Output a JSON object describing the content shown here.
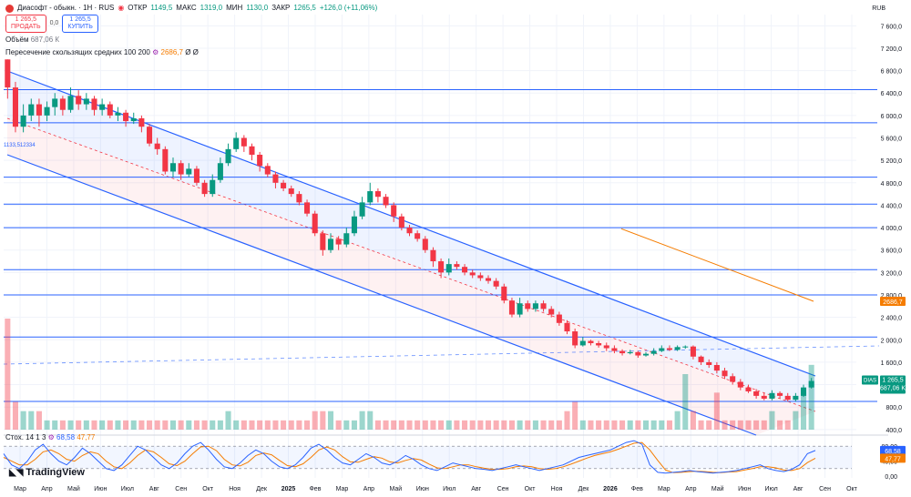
{
  "header": {
    "symbol_title": "Диасофт - обыкн. · 1Н · RUS",
    "open_label": "ОТКР",
    "open_value": "1149,5",
    "high_label": "МАКС",
    "high_value": "1319,0",
    "low_label": "МИН",
    "low_value": "1130,0",
    "close_label": "ЗАКР",
    "close_value": "1265,5",
    "change": "+126,0 (+11,06%)"
  },
  "trade": {
    "sell_price": "1 265,5",
    "sell_label": "ПРОДАТЬ",
    "spread": "0,0",
    "buy_price": "1 265,5",
    "buy_label": "КУПИТЬ"
  },
  "volume_legend": {
    "label": "Объём",
    "value": "687,06 К"
  },
  "ma_legend": {
    "label": "Пересечение скользящих средних 100 200",
    "value": "2686,7",
    "extra1": "Ø",
    "extra2": "Ø"
  },
  "stoch_legend": {
    "label": "Стох. 14 1 3",
    "k": "68,58",
    "d": "47,77"
  },
  "currency": "RUB",
  "brand": "TradingView",
  "colors": {
    "up": "#089981",
    "down": "#f23645",
    "channel": "#2962ff",
    "level": "#2962ff",
    "ma": "#f57c00"
  },
  "chart_data": {
    "type": "candlestick",
    "y_axis_ticks": [
      "7 600,0",
      "7 200,0",
      "6 800,0",
      "6 400,0",
      "6 000,0",
      "5 600,0",
      "5 200,0",
      "4 800,0",
      "4 400,0",
      "4 000,0",
      "3 600,0",
      "3 200,0",
      "2 800,0",
      "2 400,0",
      "2 000,0",
      "1 600,0",
      "1 200,0",
      "800,0",
      "400,0"
    ],
    "ylim": [
      300,
      7800
    ],
    "stoch_ticks": [
      "80,00",
      "40,00",
      "0,00"
    ],
    "x_axis_ticks": [
      "Мар",
      "Апр",
      "Май",
      "Июн",
      "Июл",
      "Авг",
      "Сен",
      "Окт",
      "Ноя",
      "Дек",
      "2025",
      "Фев",
      "Мар",
      "Апр",
      "Май",
      "Июн",
      "Июл",
      "Авг",
      "Сен",
      "Окт",
      "Ноя",
      "Дек",
      "2026",
      "Фев",
      "Мар",
      "Апр",
      "Май",
      "Июн",
      "Июл",
      "Авг",
      "Сен",
      "Окт"
    ],
    "horizontal_levels": [
      6460,
      5870,
      4900,
      4420,
      4000,
      3250,
      2800,
      2050,
      900
    ],
    "left_label": "1133,512334",
    "price_tags": [
      {
        "label": "DIAS",
        "value": "1 265,5",
        "sub": "687,06 K",
        "price": 1265.5,
        "color": "#089981"
      },
      {
        "label": "",
        "value": "2686,7",
        "sub": "",
        "price": 2686.7,
        "color": "#f57c00"
      }
    ],
    "stoch_tags": [
      {
        "value": "68,58",
        "level": 68.58,
        "color": "#2962ff"
      },
      {
        "value": "47,77",
        "level": 47.77,
        "color": "#f57c00"
      }
    ],
    "candles": [
      [
        7000,
        6500,
        7000,
        6300
      ],
      [
        6500,
        5800,
        6600,
        5700
      ],
      [
        5800,
        6000,
        6200,
        5700
      ],
      [
        6000,
        6200,
        6300,
        5900
      ],
      [
        6200,
        6000,
        6300,
        5800
      ],
      [
        6000,
        6150,
        6250,
        5900
      ],
      [
        6150,
        6300,
        6400,
        6000
      ],
      [
        6300,
        6100,
        6350,
        6000
      ],
      [
        6100,
        6350,
        6500,
        6050
      ],
      [
        6350,
        6200,
        6450,
        6100
      ],
      [
        6200,
        6300,
        6400,
        6100
      ],
      [
        6300,
        6100,
        6350,
        6000
      ],
      [
        6100,
        6200,
        6300,
        6000
      ],
      [
        6200,
        6000,
        6250,
        5950
      ],
      [
        6000,
        6050,
        6150,
        5900
      ],
      [
        6050,
        5900,
        6100,
        5800
      ],
      [
        5900,
        5950,
        6050,
        5850
      ],
      [
        5950,
        5800,
        6000,
        5700
      ],
      [
        5800,
        5500,
        5850,
        5450
      ],
      [
        5500,
        5400,
        5600,
        5300
      ],
      [
        5400,
        5000,
        5450,
        4950
      ],
      [
        5000,
        5150,
        5250,
        4900
      ],
      [
        5150,
        4950,
        5200,
        4850
      ],
      [
        4950,
        5050,
        5150,
        4900
      ],
      [
        5050,
        4800,
        5100,
        4750
      ],
      [
        4800,
        4600,
        4850,
        4550
      ],
      [
        4600,
        4850,
        4950,
        4550
      ],
      [
        4850,
        5150,
        5250,
        4800
      ],
      [
        5150,
        5400,
        5500,
        5100
      ],
      [
        5400,
        5600,
        5700,
        5350
      ],
      [
        5600,
        5450,
        5650,
        5350
      ],
      [
        5450,
        5300,
        5500,
        5200
      ],
      [
        5300,
        5100,
        5350,
        5000
      ],
      [
        5100,
        4950,
        5150,
        4900
      ],
      [
        4950,
        4800,
        5000,
        4700
      ],
      [
        4800,
        4700,
        4850,
        4650
      ],
      [
        4700,
        4600,
        4750,
        4550
      ],
      [
        4600,
        4450,
        4650,
        4400
      ],
      [
        4450,
        4250,
        4500,
        4200
      ],
      [
        4250,
        3900,
        4300,
        3850
      ],
      [
        3900,
        3600,
        3950,
        3500
      ],
      [
        3600,
        3800,
        3900,
        3550
      ],
      [
        3800,
        3700,
        3850,
        3600
      ],
      [
        3700,
        3900,
        4000,
        3650
      ],
      [
        3900,
        4200,
        4300,
        3850
      ],
      [
        4200,
        4450,
        4550,
        4150
      ],
      [
        4450,
        4650,
        4800,
        4400
      ],
      [
        4650,
        4550,
        4700,
        4450
      ],
      [
        4550,
        4400,
        4600,
        4350
      ],
      [
        4400,
        4200,
        4450,
        4100
      ],
      [
        4200,
        4000,
        4250,
        3950
      ],
      [
        4000,
        3900,
        4050,
        3850
      ],
      [
        3900,
        3800,
        3950,
        3750
      ],
      [
        3800,
        3600,
        3850,
        3550
      ],
      [
        3600,
        3400,
        3650,
        3300
      ],
      [
        3400,
        3200,
        3450,
        3100
      ],
      [
        3200,
        3350,
        3450,
        3150
      ],
      [
        3350,
        3300,
        3400,
        3250
      ],
      [
        3300,
        3200,
        3350,
        3150
      ],
      [
        3200,
        3150,
        3250,
        3100
      ],
      [
        3150,
        3100,
        3200,
        3050
      ],
      [
        3100,
        3050,
        3150,
        3000
      ],
      [
        3050,
        2950,
        3100,
        2900
      ],
      [
        2950,
        2700,
        3000,
        2650
      ],
      [
        2700,
        2450,
        2750,
        2400
      ],
      [
        2450,
        2650,
        2750,
        2400
      ],
      [
        2650,
        2550,
        2700,
        2500
      ],
      [
        2550,
        2650,
        2700,
        2500
      ],
      [
        2650,
        2550,
        2700,
        2500
      ],
      [
        2550,
        2450,
        2600,
        2400
      ],
      [
        2450,
        2300,
        2500,
        2250
      ],
      [
        2300,
        2150,
        2350,
        2100
      ],
      [
        2150,
        1900,
        2200,
        1850
      ],
      [
        1900,
        1980,
        2050,
        1880
      ],
      [
        1980,
        1940,
        2000,
        1900
      ],
      [
        1940,
        1900,
        1980,
        1860
      ],
      [
        1900,
        1850,
        1950,
        1800
      ],
      [
        1850,
        1800,
        1900,
        1760
      ],
      [
        1800,
        1760,
        1830,
        1720
      ],
      [
        1760,
        1780,
        1820,
        1740
      ],
      [
        1780,
        1720,
        1800,
        1680
      ],
      [
        1720,
        1750,
        1780,
        1700
      ],
      [
        1750,
        1800,
        1850,
        1720
      ],
      [
        1800,
        1850,
        1900,
        1780
      ],
      [
        1850,
        1820,
        1900,
        1800
      ],
      [
        1820,
        1870,
        1900,
        1800
      ],
      [
        1870,
        1880,
        1900,
        1840
      ],
      [
        1880,
        1700,
        1900,
        1650
      ],
      [
        1700,
        1600,
        1720,
        1550
      ],
      [
        1600,
        1550,
        1650,
        1500
      ],
      [
        1550,
        1450,
        1600,
        1400
      ],
      [
        1450,
        1350,
        1500,
        1300
      ],
      [
        1350,
        1250,
        1400,
        1200
      ],
      [
        1250,
        1150,
        1300,
        1100
      ],
      [
        1150,
        1080,
        1200,
        1050
      ],
      [
        1080,
        1000,
        1120,
        950
      ],
      [
        1000,
        950,
        1050,
        920
      ],
      [
        950,
        1050,
        1100,
        920
      ],
      [
        1050,
        1000,
        1080,
        950
      ],
      [
        1000,
        930,
        1050,
        900
      ],
      [
        930,
        1000,
        1050,
        900
      ],
      [
        1000,
        1150,
        1200,
        980
      ],
      [
        1149.5,
        1265.5,
        1319,
        1130
      ]
    ],
    "volume": [
      12,
      3,
      2,
      2,
      2,
      1,
      1,
      1,
      1,
      1,
      1,
      1,
      1,
      1,
      1,
      1,
      1,
      1,
      1,
      1,
      1,
      1,
      1,
      1,
      1,
      1,
      1,
      1,
      2,
      1,
      1,
      1,
      1,
      1,
      1,
      1,
      1,
      1,
      1,
      2,
      2,
      2,
      1,
      1,
      1,
      2,
      2,
      1,
      1,
      1,
      1,
      1,
      1,
      1,
      1,
      1,
      1,
      1,
      1,
      1,
      1,
      1,
      1,
      1,
      1,
      1,
      1,
      1,
      1,
      1,
      1,
      2,
      3,
      1,
      1,
      1,
      1,
      1,
      1,
      1,
      1,
      1,
      1,
      1,
      1,
      2,
      6,
      2,
      1,
      1,
      4,
      1,
      1,
      1,
      1,
      1,
      1,
      2,
      1,
      1,
      2,
      4,
      7
    ],
    "stoch_k": [
      60,
      30,
      20,
      40,
      70,
      85,
      60,
      40,
      30,
      50,
      75,
      60,
      40,
      20,
      15,
      30,
      55,
      80,
      70,
      50,
      30,
      20,
      35,
      60,
      80,
      90,
      70,
      45,
      25,
      20,
      35,
      55,
      70,
      60,
      40,
      25,
      20,
      30,
      50,
      75,
      85,
      70,
      50,
      35,
      30,
      45,
      60,
      50,
      35,
      30,
      40,
      55,
      45,
      30,
      20,
      15,
      25,
      35,
      30,
      25,
      20,
      18,
      15,
      20,
      25,
      30,
      25,
      20,
      15,
      20,
      25,
      30,
      40,
      50,
      55,
      60,
      65,
      70,
      80,
      90,
      95,
      85,
      30,
      10,
      8,
      10,
      12,
      15,
      12,
      10,
      8,
      10,
      12,
      15,
      20,
      25,
      30,
      20,
      15,
      12,
      18,
      30,
      60,
      68.58
    ],
    "stoch_d": [
      50,
      40,
      30,
      30,
      45,
      65,
      70,
      60,
      45,
      40,
      55,
      65,
      60,
      40,
      25,
      20,
      35,
      55,
      70,
      65,
      50,
      33,
      28,
      40,
      60,
      78,
      80,
      68,
      45,
      30,
      27,
      37,
      55,
      62,
      57,
      42,
      28,
      25,
      33,
      50,
      70,
      78,
      70,
      52,
      38,
      37,
      45,
      52,
      48,
      38,
      35,
      42,
      47,
      43,
      32,
      22,
      20,
      25,
      30,
      30,
      25,
      21,
      18,
      18,
      20,
      25,
      27,
      25,
      20,
      18,
      20,
      25,
      32,
      40,
      48,
      55,
      60,
      65,
      72,
      80,
      88,
      90,
      70,
      42,
      16,
      9,
      10,
      12,
      13,
      12,
      10,
      9,
      11,
      12,
      16,
      20,
      25,
      25,
      22,
      16,
      15,
      20,
      36,
      47.77
    ]
  }
}
